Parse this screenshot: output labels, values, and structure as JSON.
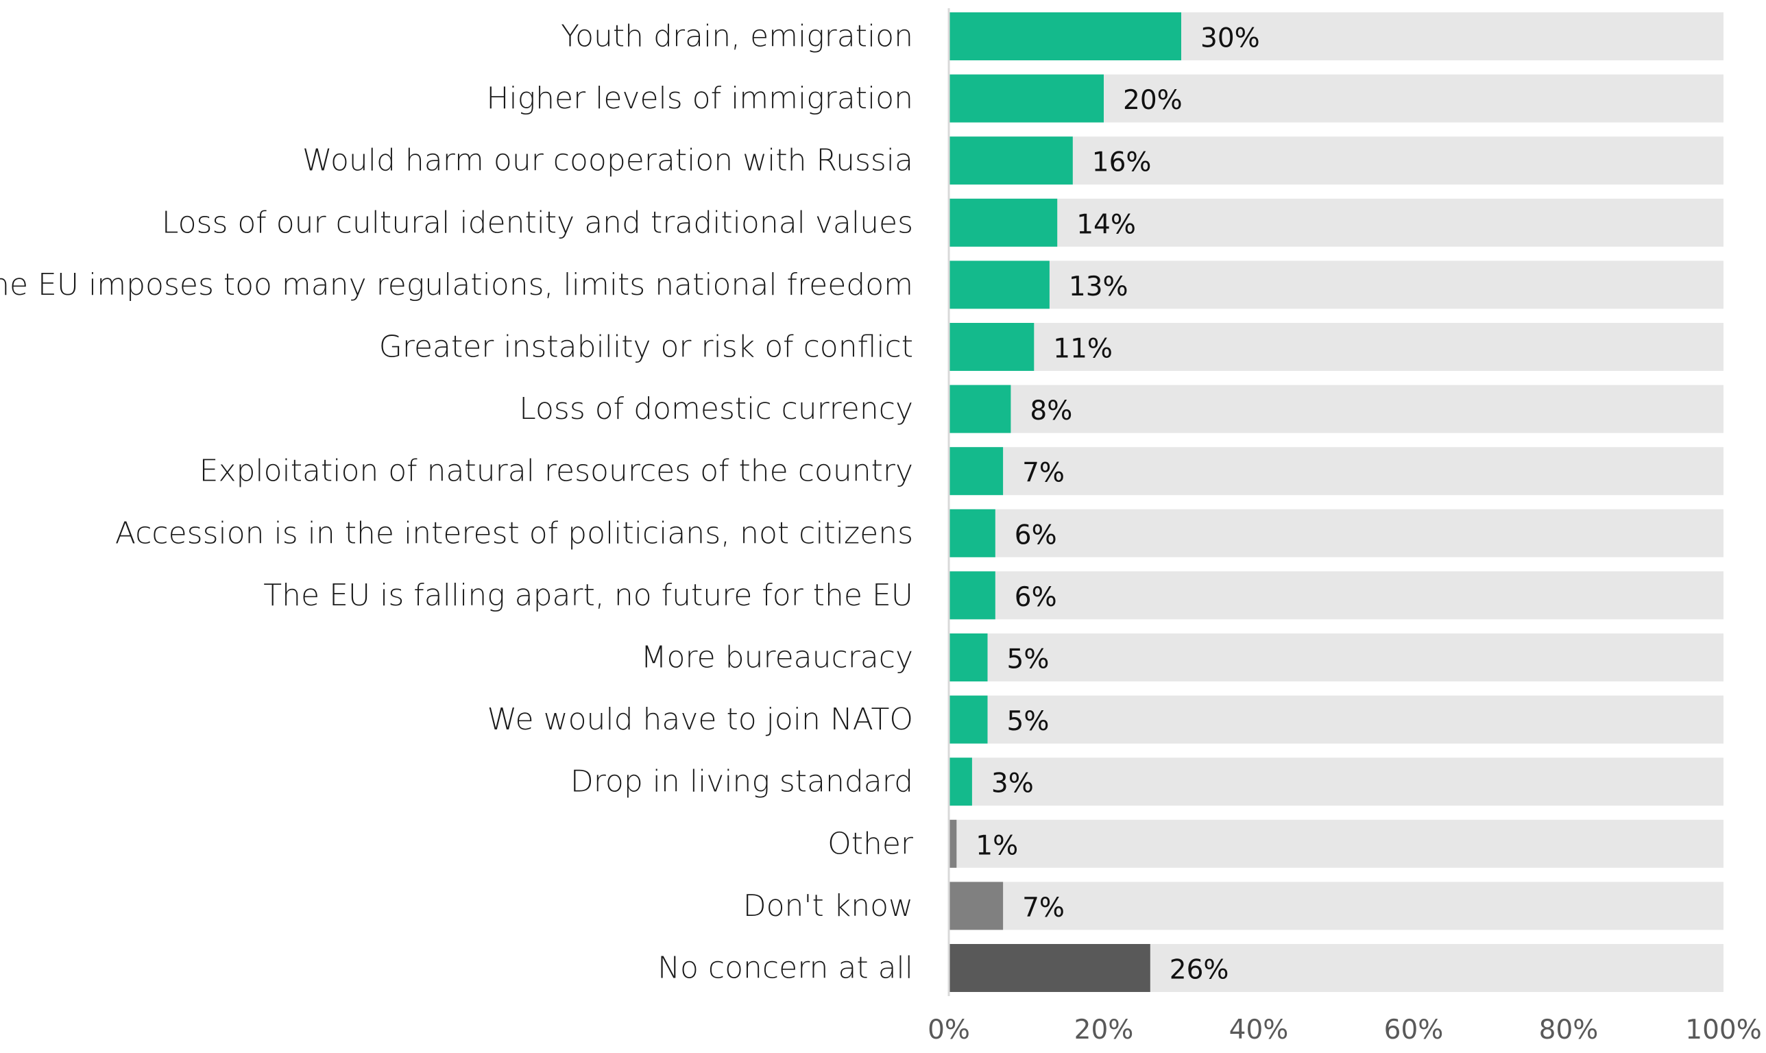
{
  "chart_data": {
    "type": "bar",
    "orientation": "horizontal",
    "title": "",
    "xlabel": "",
    "ylabel": "",
    "xlim": [
      0,
      100
    ],
    "grid": false,
    "legend": "none",
    "categories": [
      "Youth drain, emigration",
      "Higher levels of immigration",
      "Would harm our cooperation with Russia",
      "Loss of our cultural identity and traditional values",
      "The EU imposes too many regulations, limits national freedom",
      "Greater instability or risk of conflict",
      "Loss of domestic currency",
      "Exploitation of natural resources of the country",
      "Accession is in the interest of politicians, not citizens",
      "The EU is falling apart, no future for the EU",
      "More bureaucracy",
      "We would have to join NATO",
      "Drop in living standard",
      "Other",
      "Don't know",
      "No concern at all"
    ],
    "values": [
      30,
      20,
      16,
      14,
      13,
      11,
      8,
      7,
      6,
      6,
      5,
      5,
      3,
      1,
      7,
      26
    ],
    "value_labels": [
      "30%",
      "20%",
      "16%",
      "14%",
      "13%",
      "11%",
      "8%",
      "7%",
      "6%",
      "6%",
      "5%",
      "5%",
      "3%",
      "1%",
      "7%",
      "26%"
    ],
    "bar_colors": [
      "#14ba8c",
      "#14ba8c",
      "#14ba8c",
      "#14ba8c",
      "#14ba8c",
      "#14ba8c",
      "#14ba8c",
      "#14ba8c",
      "#14ba8c",
      "#14ba8c",
      "#14ba8c",
      "#14ba8c",
      "#14ba8c",
      "#808080",
      "#808080",
      "#595959"
    ],
    "background_bar_color": "#e7e7e7",
    "axis_color": "#d9d9d9",
    "x_ticks": [
      0,
      20,
      40,
      60,
      80,
      100
    ],
    "x_tick_labels": [
      "0%",
      "20%",
      "40%",
      "60%",
      "80%",
      "100%"
    ]
  }
}
